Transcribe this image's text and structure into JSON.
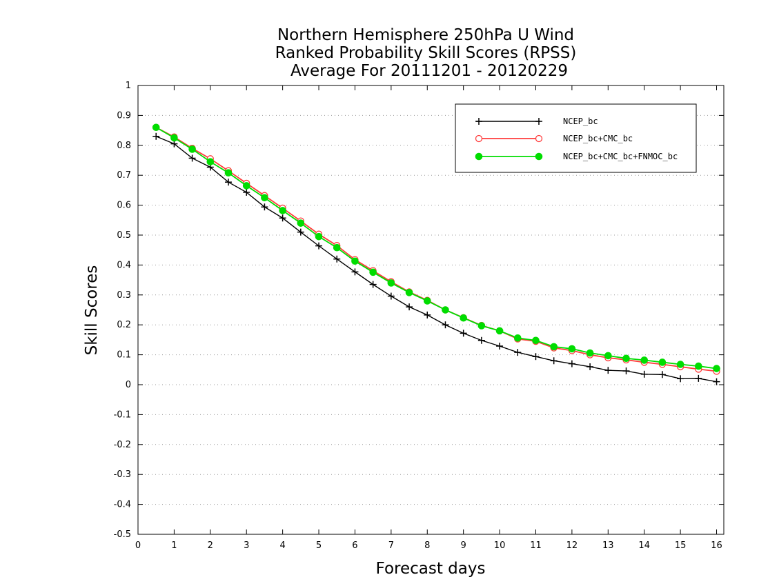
{
  "chart_data": {
    "type": "line",
    "title_lines": [
      "Northern Hemisphere 250hPa U Wind",
      "Ranked Probability Skill Scores (RPSS)",
      "Average For 20111201 - 20120229"
    ],
    "xlabel": "Forecast days",
    "ylabel": "Skill Scores",
    "xlim": [
      0,
      16.2
    ],
    "ylim": [
      -0.5,
      1
    ],
    "x_ticks": [
      0,
      1,
      2,
      3,
      4,
      5,
      6,
      7,
      8,
      9,
      10,
      11,
      12,
      13,
      14,
      15,
      16
    ],
    "y_ticks": [
      -0.5,
      -0.4,
      -0.3,
      -0.2,
      -0.1,
      0,
      0.1,
      0.2,
      0.3,
      0.4,
      0.5,
      0.6,
      0.7,
      0.8,
      0.9,
      1
    ],
    "y_tick_labels": [
      "-0.5",
      "-0.4",
      "-0.3",
      "-0.2",
      "-0.1",
      "0",
      "0.1",
      "0.2",
      "0.3",
      "0.4",
      "0.5",
      "0.6",
      "0.7",
      "0.8",
      "0.9",
      "1"
    ],
    "grid": "horizontal dotted",
    "legend_position": "top-right",
    "x": [
      0.5,
      1,
      1.5,
      2,
      2.5,
      3,
      3.5,
      4,
      4.5,
      5,
      5.5,
      6,
      6.5,
      7,
      7.5,
      8,
      8.5,
      9,
      9.5,
      10,
      10.5,
      11,
      11.5,
      12,
      12.5,
      13,
      13.5,
      14,
      14.5,
      15,
      15.5,
      16
    ],
    "series": [
      {
        "name": "NCEP_bc",
        "color": "#000000",
        "marker": "plus",
        "values": [
          0.83,
          0.805,
          0.757,
          0.727,
          0.677,
          0.643,
          0.594,
          0.557,
          0.51,
          0.464,
          0.42,
          0.377,
          0.335,
          0.296,
          0.26,
          0.233,
          0.2,
          0.172,
          0.148,
          0.129,
          0.108,
          0.094,
          0.08,
          0.07,
          0.06,
          0.048,
          0.046,
          0.035,
          0.034,
          0.02,
          0.021,
          0.01
        ]
      },
      {
        "name": "NCEP_bc+CMC_bc",
        "color": "#ff3b3b",
        "marker": "open-circle",
        "values": [
          0.86,
          0.828,
          0.79,
          0.755,
          0.715,
          0.673,
          0.632,
          0.59,
          0.547,
          0.503,
          0.465,
          0.418,
          0.381,
          0.344,
          0.31,
          0.282,
          0.25,
          0.224,
          0.198,
          0.18,
          0.153,
          0.145,
          0.123,
          0.114,
          0.1,
          0.09,
          0.083,
          0.075,
          0.068,
          0.06,
          0.052,
          0.045
        ]
      },
      {
        "name": "NCEP_bc+CMC_bc+FNMOC_bc",
        "color": "#00dd00",
        "marker": "filled-circle",
        "values": [
          0.86,
          0.825,
          0.787,
          0.745,
          0.708,
          0.665,
          0.625,
          0.582,
          0.54,
          0.495,
          0.458,
          0.413,
          0.376,
          0.34,
          0.308,
          0.28,
          0.25,
          0.223,
          0.197,
          0.18,
          0.156,
          0.148,
          0.127,
          0.12,
          0.106,
          0.097,
          0.088,
          0.082,
          0.075,
          0.068,
          0.062,
          0.054
        ]
      }
    ]
  }
}
